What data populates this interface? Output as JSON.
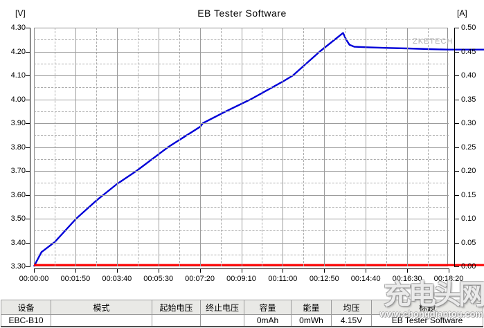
{
  "window": {
    "title": "EB Tester Software"
  },
  "chart_data": {
    "type": "line",
    "title": "EB Tester Software",
    "grid": true,
    "brand_watermark": "ZKETECH",
    "left_axis": {
      "label": "[V]",
      "min": 3.3,
      "max": 4.3,
      "ticks": [
        "4.30",
        "4.20",
        "4.10",
        "4.00",
        "3.90",
        "3.80",
        "3.70",
        "3.60",
        "3.50",
        "3.40",
        "3.30"
      ]
    },
    "right_axis": {
      "label": "[A]",
      "min": 0.0,
      "max": 0.5,
      "ticks": [
        "0.50",
        "0.45",
        "0.40",
        "0.35",
        "0.30",
        "0.25",
        "0.20",
        "0.15",
        "0.10",
        "0.05",
        "0.00"
      ]
    },
    "x_axis": {
      "max_seconds": 1100,
      "ticks": [
        "00:00:00",
        "00:01:50",
        "00:03:40",
        "00:05:30",
        "00:07:20",
        "00:09:10",
        "00:11:00",
        "00:12:50",
        "00:14:40",
        "00:16:30",
        "00:18:20"
      ]
    },
    "series": [
      {
        "name": "voltage",
        "unit": "V",
        "axis": "left",
        "color": "#0000d8",
        "extend_right": true,
        "points": [
          [
            0,
            3.3
          ],
          [
            20,
            3.36
          ],
          [
            55,
            3.402
          ],
          [
            112,
            3.5
          ],
          [
            165,
            3.575
          ],
          [
            220,
            3.645
          ],
          [
            272,
            3.7
          ],
          [
            331,
            3.77
          ],
          [
            356,
            3.8
          ],
          [
            441,
            3.885
          ],
          [
            448,
            3.9
          ],
          [
            510,
            3.95
          ],
          [
            575,
            4.0
          ],
          [
            661,
            4.075
          ],
          [
            687,
            4.1
          ],
          [
            758,
            4.2
          ],
          [
            820,
            4.278
          ],
          [
            828,
            4.25
          ],
          [
            837,
            4.228
          ],
          [
            850,
            4.22
          ],
          [
            883,
            4.218
          ],
          [
            938,
            4.215
          ],
          [
            991,
            4.213
          ],
          [
            1048,
            4.21
          ],
          [
            1100,
            4.208
          ]
        ]
      },
      {
        "name": "current",
        "unit": "A",
        "axis": "right",
        "color": "#ff0000",
        "extend_right": true,
        "points": [
          [
            0,
            0.0
          ],
          [
            1100,
            0.0
          ]
        ]
      }
    ]
  },
  "table": {
    "headers": [
      "设备",
      "模式",
      "起始电压",
      "终止电压",
      "容量",
      "能量",
      "均压",
      "标题"
    ],
    "row": [
      "EBC-B10",
      "",
      "",
      "",
      "0mAh",
      "0mWh",
      "4.15V",
      "EB Tester Software"
    ]
  },
  "watermark": {
    "logo_text": "充电头网",
    "url_text": "www.chongdiantou.com"
  }
}
